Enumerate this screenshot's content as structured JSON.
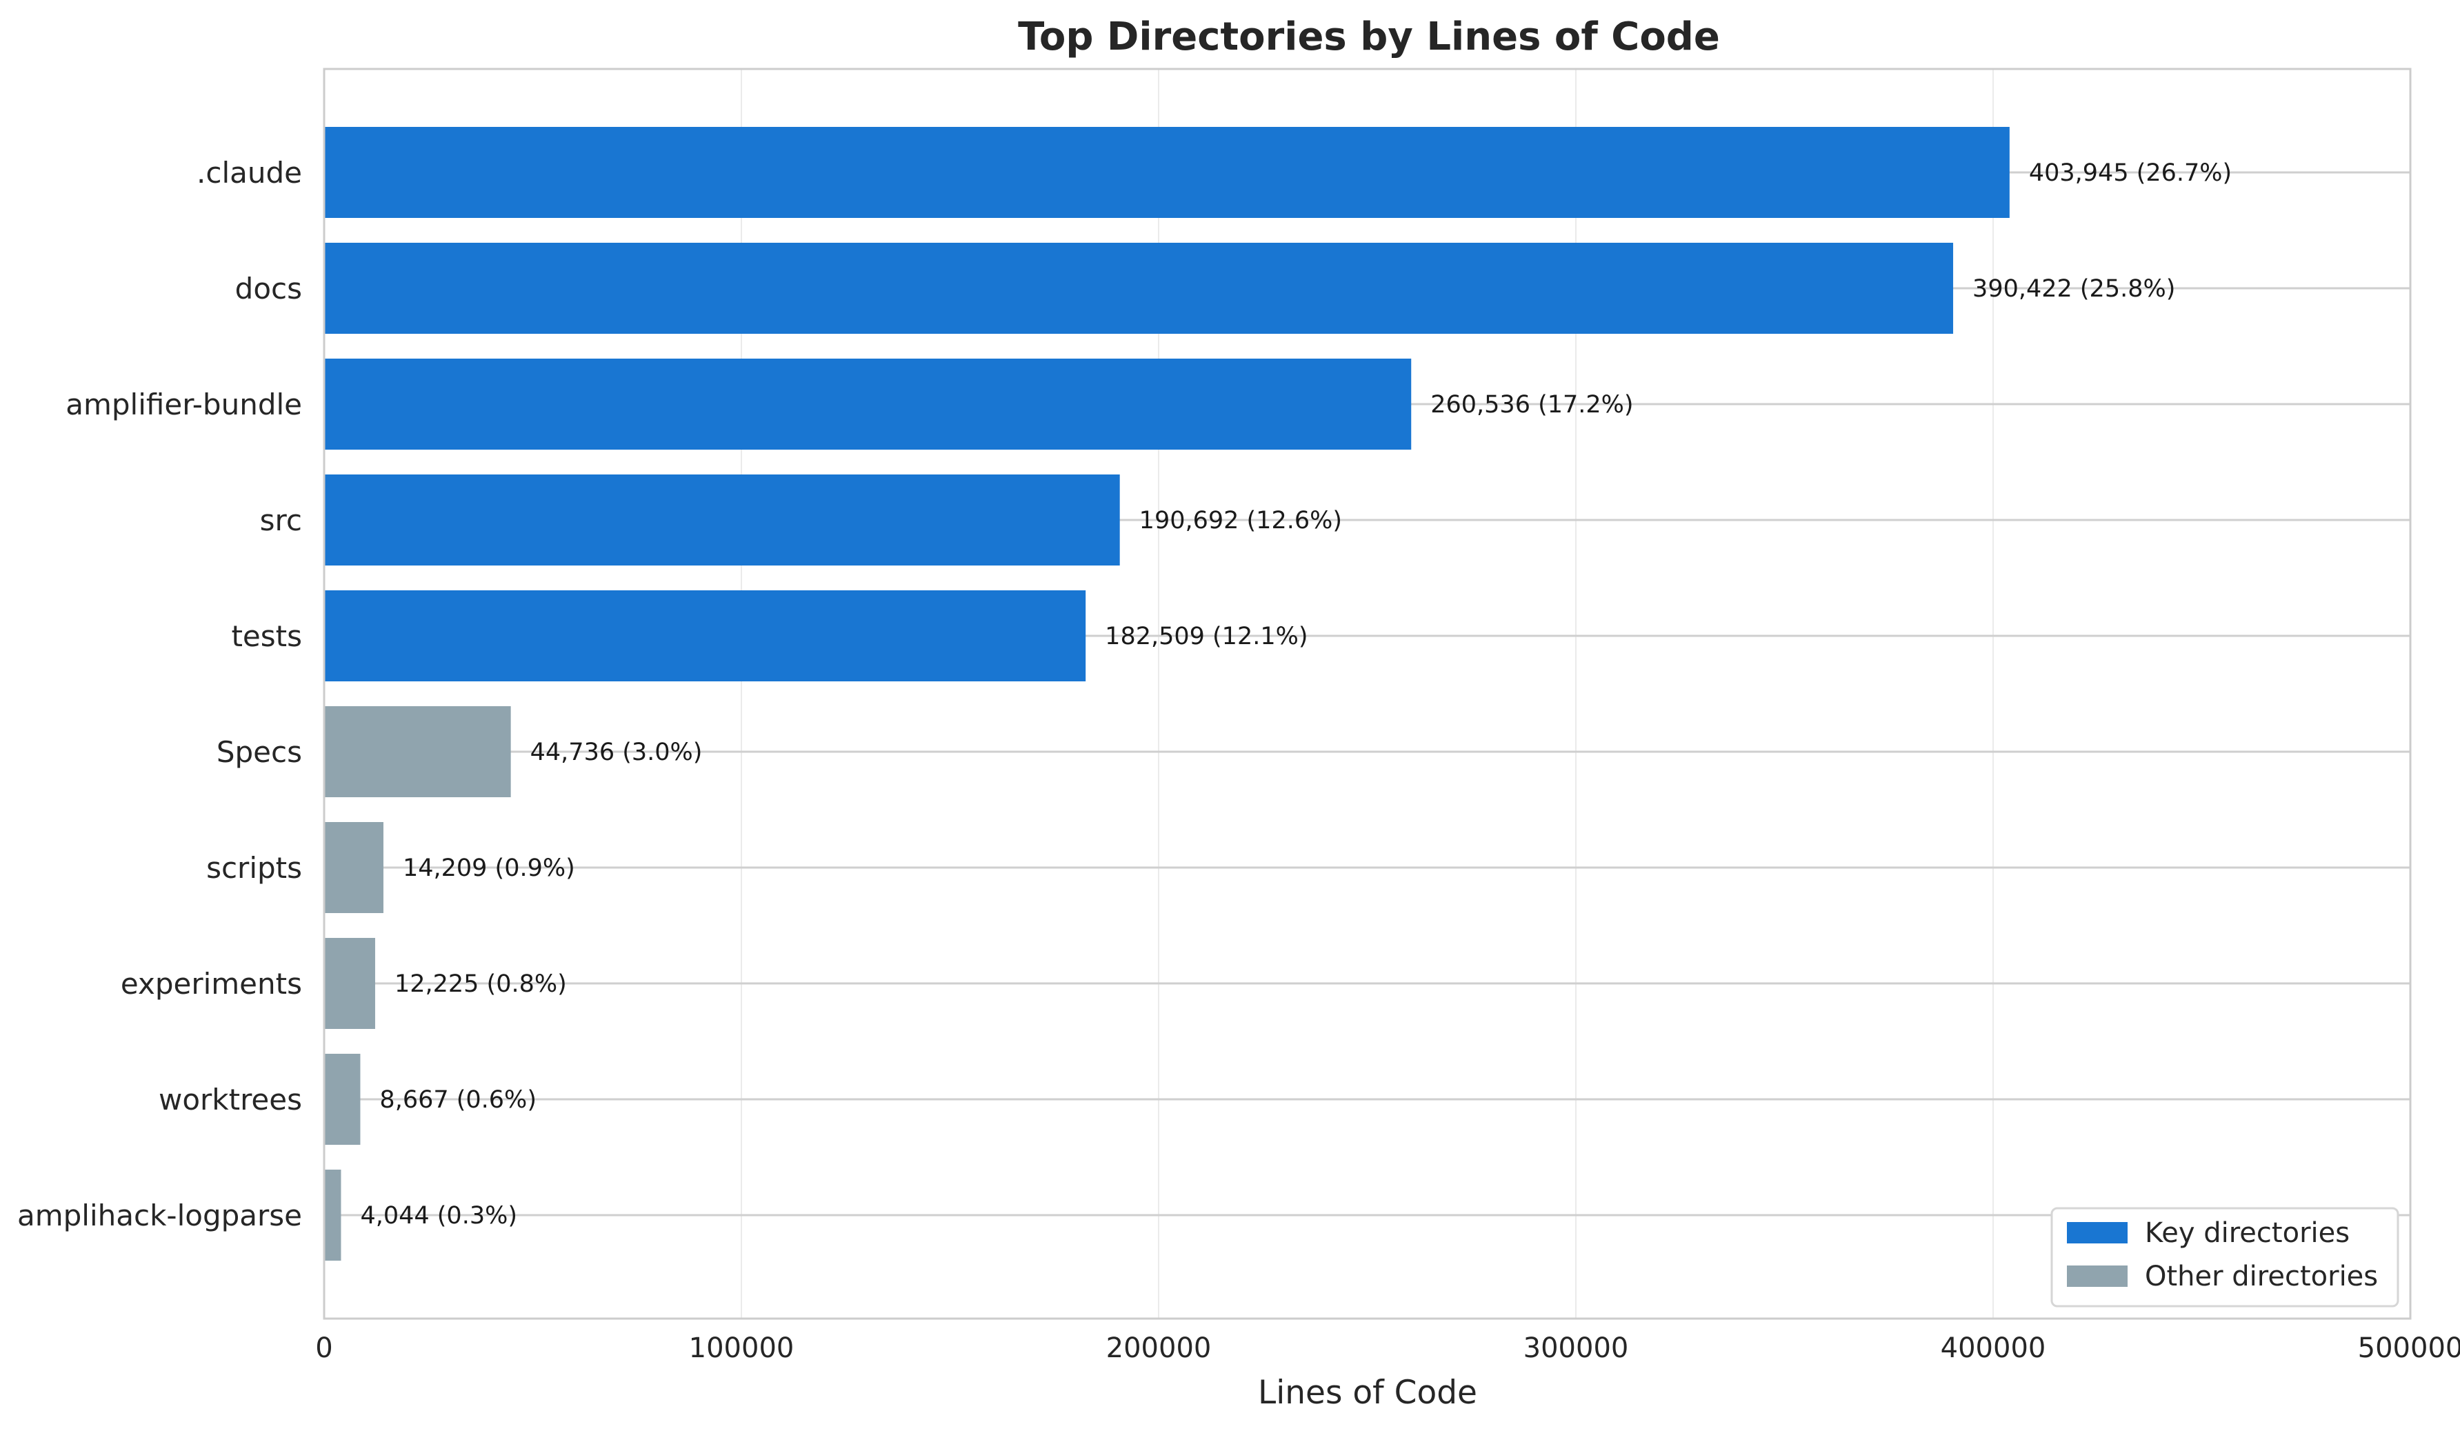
{
  "chart_data": {
    "type": "bar",
    "orientation": "horizontal",
    "title": "Top Directories by Lines of Code",
    "xlabel": "Lines of Code",
    "ylabel": "",
    "xlim": [
      0,
      500000
    ],
    "xticks": [
      "0",
      "100000",
      "200000",
      "300000",
      "400000",
      "500000"
    ],
    "grid": "on",
    "categories": [
      ".claude",
      "docs",
      "amplifier-bundle",
      "src",
      "tests",
      "Specs",
      "scripts",
      "experiments",
      "worktrees",
      "amplihack-logparse"
    ],
    "values": [
      403945,
      390422,
      260536,
      190692,
      182509,
      44736,
      14209,
      12225,
      8667,
      4044
    ],
    "data_labels": [
      "403,945 (26.7%)",
      "390,422 (25.8%)",
      "260,536 (17.2%)",
      "190,692 (12.6%)",
      "182,509 (12.1%)",
      "44,736 (3.0%)",
      "14,209 (0.9%)",
      "12,225 (0.8%)",
      "8,667 (0.6%)",
      "4,044 (0.3%)"
    ],
    "groups": [
      "key",
      "key",
      "key",
      "key",
      "key",
      "other",
      "other",
      "other",
      "other",
      "other"
    ],
    "legend": {
      "position": "lower-right",
      "entries": [
        {
          "key": "key",
          "label": "Key directories",
          "color": "#1976d2"
        },
        {
          "key": "other",
          "label": "Other directories",
          "color": "#90a4ae"
        }
      ]
    }
  }
}
